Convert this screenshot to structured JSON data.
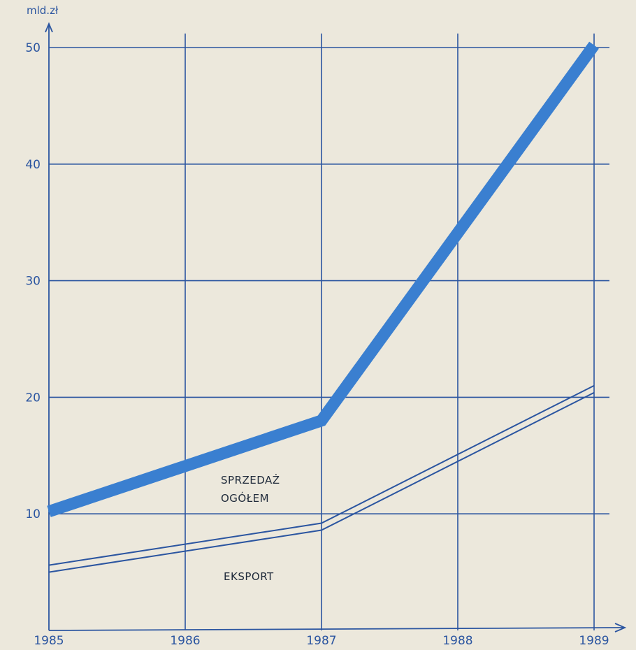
{
  "chart_data": {
    "type": "line",
    "title": "",
    "ylabel": "mld.zł",
    "xlabel": "",
    "x": [
      "1985",
      "1986",
      "1987",
      "1988",
      "1989"
    ],
    "ylim": [
      0,
      50
    ],
    "yticks": [
      10,
      20,
      30,
      40,
      50
    ],
    "grid": true,
    "series": [
      {
        "name": "SPRZEDAŻ\nOGÓŁEM",
        "label_lines": [
          "SPRZEDAŻ",
          "OGÓŁEM"
        ],
        "style": "thick",
        "color": "#3a7fd0",
        "values": [
          10.2,
          null,
          18.0,
          null,
          50.2
        ]
      },
      {
        "name": "EKSPORT",
        "label_lines": [
          "EKSPORT"
        ],
        "style": "double-line",
        "color": "#2b55a0",
        "values": [
          5.3,
          null,
          8.9,
          null,
          20.7
        ]
      }
    ]
  }
}
